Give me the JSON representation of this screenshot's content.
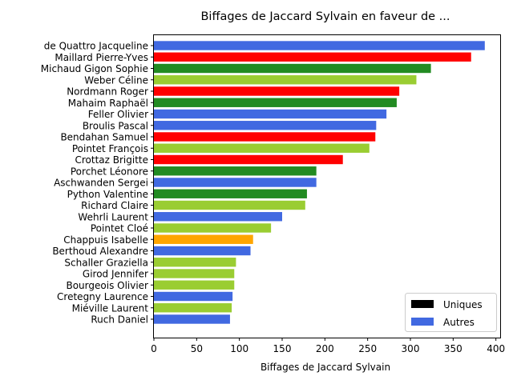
{
  "chart_data": {
    "type": "bar",
    "orientation": "horizontal",
    "title": "Biffages de Jaccard Sylvain en faveur de ...",
    "xlabel": "Biffages de Jaccard Sylvain",
    "ylabel": "",
    "xlim": [
      0,
      405
    ],
    "xticks": [
      0,
      50,
      100,
      150,
      200,
      250,
      300,
      350,
      400
    ],
    "grid": false,
    "legend_position": "lower-right",
    "legend": [
      {
        "label": "Uniques",
        "color": "#000000"
      },
      {
        "label": "Autres",
        "color": "#4169e1"
      }
    ],
    "categories": [
      "de Quattro Jacqueline",
      "Maillard Pierre-Yves",
      "Michaud Gigon Sophie",
      "Weber Céline",
      "Nordmann Roger",
      "Mahaim Raphaël",
      "Feller Olivier",
      "Broulis Pascal",
      "Bendahan Samuel",
      "Pointet François",
      "Crottaz Brigitte",
      "Porchet Léonore",
      "Aschwanden Sergei",
      "Python Valentine",
      "Richard Claire",
      "Wehrli Laurent",
      "Pointet Cloé",
      "Chappuis Isabelle",
      "Berthoud Alexandre",
      "Schaller Graziella",
      "Girod Jennifer",
      "Bourgeois Olivier",
      "Cretegny Laurence",
      "Miéville Laurent",
      "Ruch Daniel"
    ],
    "values": [
      387,
      371,
      324,
      307,
      287,
      284,
      272,
      260,
      259,
      252,
      221,
      190,
      190,
      179,
      177,
      150,
      137,
      116,
      113,
      96,
      94,
      94,
      92,
      91,
      89
    ],
    "colors": [
      "#4169e1",
      "#ff0000",
      "#228b22",
      "#9acd32",
      "#ff0000",
      "#228b22",
      "#4169e1",
      "#4169e1",
      "#ff0000",
      "#9acd32",
      "#ff0000",
      "#228b22",
      "#4169e1",
      "#228b22",
      "#9acd32",
      "#4169e1",
      "#9acd32",
      "#ffa500",
      "#4169e1",
      "#9acd32",
      "#9acd32",
      "#9acd32",
      "#4169e1",
      "#9acd32",
      "#4169e1"
    ]
  }
}
